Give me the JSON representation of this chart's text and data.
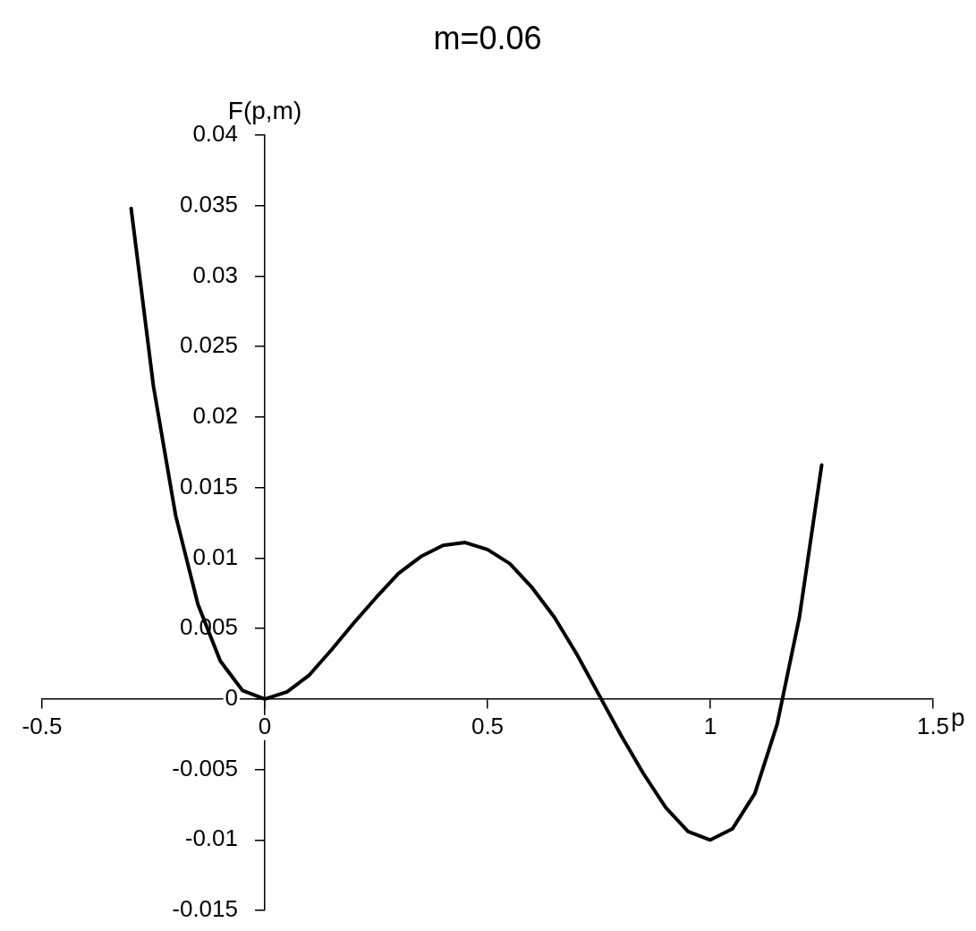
{
  "chart_data": {
    "type": "line",
    "title": "m=0.06",
    "xlabel": "p",
    "ylabel": "F(p,m)",
    "x": [
      -0.3,
      -0.25,
      -0.2,
      -0.15,
      -0.1,
      -0.05,
      0,
      0.05,
      0.1,
      0.15,
      0.2,
      0.25,
      0.3,
      0.35,
      0.4,
      0.45,
      0.5,
      0.55,
      0.6,
      0.65,
      0.7,
      0.75,
      0.8,
      0.85,
      0.9,
      0.95,
      1.0,
      1.05,
      1.1,
      1.15,
      1.2,
      1.25
    ],
    "series": [
      {
        "color": "#000000",
        "values": [
          0.0348,
          0.0222,
          0.013,
          0.0067,
          0.0027,
          0.0006,
          0,
          0.0005,
          0.0017,
          0.0035,
          0.0054,
          0.0072,
          0.0089,
          0.0101,
          0.0109,
          0.0111,
          0.0106,
          0.0096,
          0.0079,
          0.0058,
          0.0032,
          0.0003,
          -0.0026,
          -0.0053,
          -0.0077,
          -0.0094,
          -0.01,
          -0.0092,
          -0.0067,
          -0.0018,
          0.0058,
          0.0166
        ]
      }
    ],
    "xlim": [
      -0.5,
      1.5
    ],
    "xticks": [
      -0.5,
      0,
      0.5,
      1,
      1.5
    ],
    "ylim": [
      -0.015,
      0.04
    ],
    "yticks": [
      -0.015,
      -0.01,
      -0.005,
      0,
      0.005,
      0.01,
      0.015,
      0.02,
      0.025,
      0.03,
      0.035,
      0.04
    ],
    "grid": false,
    "legend": false,
    "marker": "none",
    "line_style": "solid"
  }
}
